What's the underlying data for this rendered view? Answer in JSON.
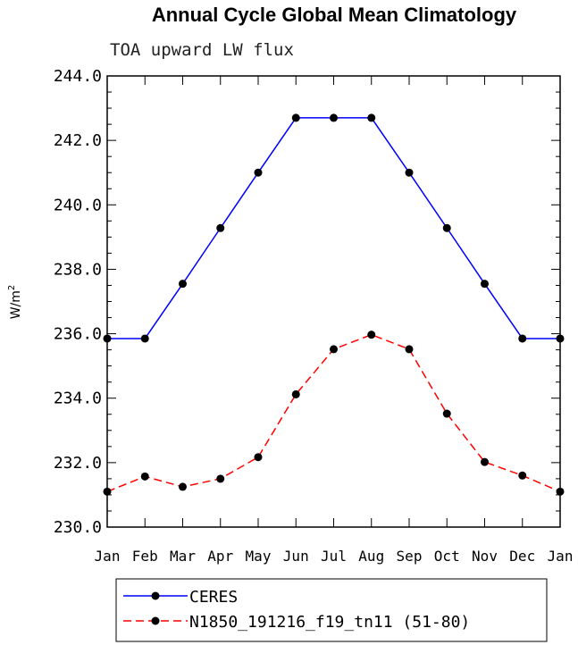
{
  "chart_data": {
    "type": "line",
    "title": "Annual Cycle Global Mean Climatology",
    "subtitle": "TOA upward LW flux",
    "ylabel": "W/m²",
    "ylabel_base": "W/m",
    "ylabel_exp": "2",
    "categories": [
      "Jan",
      "Feb",
      "Mar",
      "Apr",
      "May",
      "Jun",
      "Jul",
      "Aug",
      "Sep",
      "Oct",
      "Nov",
      "Dec",
      "Jan"
    ],
    "ylim": [
      230.0,
      244.0
    ],
    "yticks": [
      "230.0",
      "232.0",
      "234.0",
      "236.0",
      "238.0",
      "240.0",
      "242.0",
      "244.0"
    ],
    "series": [
      {
        "name": "CERES",
        "color": "#0000ff",
        "dash": "solid",
        "values": [
          235.85,
          235.85,
          237.55,
          239.28,
          241.0,
          242.7,
          242.7,
          242.7,
          241.0,
          239.28,
          237.55,
          235.85,
          235.85
        ]
      },
      {
        "name": "N1850_191216_f19_tn11 (51-80)",
        "color": "#ff0000",
        "dash": "dashed",
        "values": [
          231.1,
          231.57,
          231.25,
          231.5,
          232.17,
          234.12,
          235.52,
          235.97,
          235.52,
          233.52,
          232.02,
          231.6,
          231.1
        ]
      }
    ],
    "marker_color": "#000000",
    "grid": false,
    "legend_position": "bottom"
  }
}
